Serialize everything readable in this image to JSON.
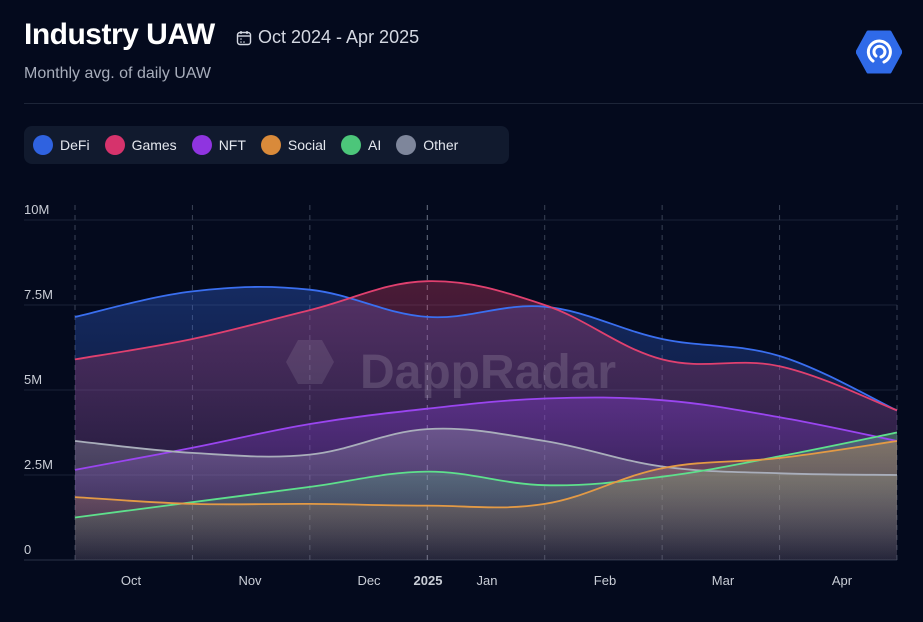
{
  "header": {
    "title": "Industry UAW",
    "date_range": "Oct 2024 - Apr 2025",
    "subtitle": "Monthly avg. of daily UAW",
    "calendar_icon": "calendar-icon",
    "logo_icon": "dappradar-logo-icon"
  },
  "watermark": "DappRadar",
  "legend": [
    {
      "label": "DeFi",
      "color": "#2f62e0"
    },
    {
      "label": "Games",
      "color": "#d6336c"
    },
    {
      "label": "NFT",
      "color": "#8f34e0"
    },
    {
      "label": "Social",
      "color": "#d98a3a"
    },
    {
      "label": "AI",
      "color": "#4cc67a"
    },
    {
      "label": "Other",
      "color": "#7e869b"
    }
  ],
  "chart_data": {
    "type": "area",
    "title": "Industry UAW",
    "subtitle": "Monthly avg. of daily UAW",
    "xlabel": "",
    "ylabel": "",
    "ylim": [
      0,
      10000000
    ],
    "y_ticks": [
      "0",
      "2.5M",
      "5M",
      "7.5M",
      "10M"
    ],
    "x_ticks": [
      "Oct",
      "Nov",
      "Dec",
      "2025",
      "Jan",
      "Feb",
      "Mar",
      "Apr"
    ],
    "grid": true,
    "legend_position": "top-left",
    "series": [
      {
        "name": "DeFi",
        "color": "#3a6ff0",
        "values": [
          7150000,
          7900000,
          7950000,
          7150000,
          7450000,
          6500000,
          6000000,
          4400000
        ]
      },
      {
        "name": "Games",
        "color": "#e0406f",
        "values": [
          5900000,
          6500000,
          7350000,
          8200000,
          7500000,
          5900000,
          5700000,
          4400000
        ]
      },
      {
        "name": "NFT",
        "color": "#9a45f0",
        "values": [
          2650000,
          3300000,
          4000000,
          4450000,
          4750000,
          4700000,
          4200000,
          3500000
        ]
      },
      {
        "name": "Other",
        "color": "#a9aebb",
        "values": [
          3500000,
          3150000,
          3100000,
          3850000,
          3500000,
          2750000,
          2550000,
          2500000
        ]
      },
      {
        "name": "AI",
        "color": "#5ee08c",
        "values": [
          1250000,
          1700000,
          2150000,
          2600000,
          2200000,
          2450000,
          3050000,
          3750000
        ]
      },
      {
        "name": "Social",
        "color": "#e39a45",
        "values": [
          1850000,
          1650000,
          1650000,
          1600000,
          1650000,
          2700000,
          3000000,
          3500000
        ]
      }
    ]
  }
}
